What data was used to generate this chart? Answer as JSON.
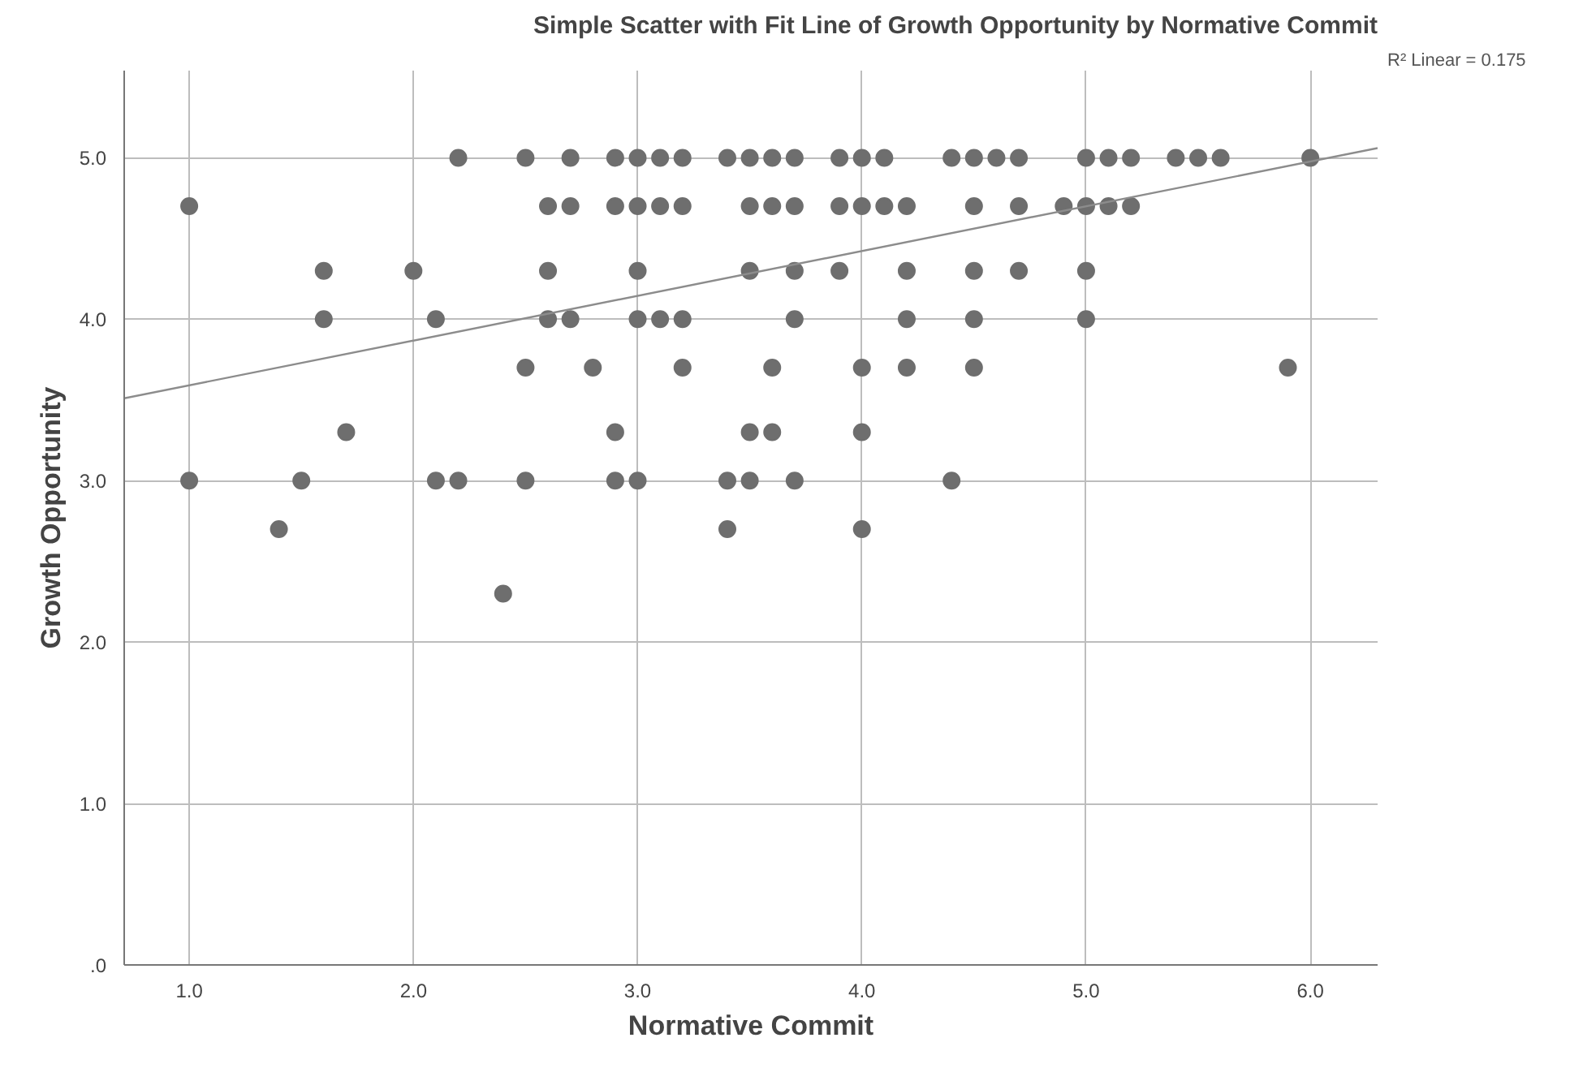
{
  "chart_data": {
    "type": "scatter",
    "title": "Simple Scatter with Fit Line of Growth Opportunity by Normative Commit",
    "xlabel": "Normative Commit",
    "ylabel": "Growth Opportunity",
    "annotations": [
      "R² Linear = 0.175"
    ],
    "series": [
      {
        "color": "#6e6e6e",
        "marker": "circle",
        "x": [
          2.2,
          2.5,
          2.7,
          2.9,
          3.0,
          3.1,
          3.2,
          3.4,
          3.5,
          3.6,
          3.7,
          3.9,
          4.0,
          4.1,
          4.4,
          4.5,
          4.6,
          4.7,
          5.0,
          5.1,
          5.2,
          5.4,
          5.5,
          5.6,
          6.0,
          1.0,
          2.6,
          2.7,
          2.9,
          3.0,
          3.1,
          3.2,
          3.5,
          3.6,
          3.7,
          3.9,
          4.0,
          4.1,
          4.2,
          4.5,
          4.7,
          4.9,
          5.0,
          5.1,
          5.2,
          1.6,
          2.0,
          2.6,
          3.0,
          3.5,
          3.7,
          3.9,
          4.2,
          4.5,
          4.7,
          5.0,
          1.6,
          2.1,
          2.6,
          2.7,
          3.0,
          3.1,
          3.2,
          3.7,
          4.2,
          4.5,
          5.0,
          2.5,
          2.8,
          3.2,
          3.6,
          4.0,
          4.2,
          4.5,
          5.9,
          1.7,
          2.9,
          3.5,
          3.6,
          4.0,
          1.0,
          1.5,
          2.1,
          2.2,
          2.5,
          2.9,
          3.0,
          3.4,
          3.5,
          3.7,
          4.4,
          1.4,
          3.4,
          4.0,
          2.4
        ],
        "values": [
          5.0,
          5.0,
          5.0,
          5.0,
          5.0,
          5.0,
          5.0,
          5.0,
          5.0,
          5.0,
          5.0,
          5.0,
          5.0,
          5.0,
          5.0,
          5.0,
          5.0,
          5.0,
          5.0,
          5.0,
          5.0,
          5.0,
          5.0,
          5.0,
          5.0,
          4.7,
          4.7,
          4.7,
          4.7,
          4.7,
          4.7,
          4.7,
          4.7,
          4.7,
          4.7,
          4.7,
          4.7,
          4.7,
          4.7,
          4.7,
          4.7,
          4.7,
          4.7,
          4.7,
          4.7,
          4.3,
          4.3,
          4.3,
          4.3,
          4.3,
          4.3,
          4.3,
          4.3,
          4.3,
          4.3,
          4.3,
          4.0,
          4.0,
          4.0,
          4.0,
          4.0,
          4.0,
          4.0,
          4.0,
          4.0,
          4.0,
          4.0,
          3.7,
          3.7,
          3.7,
          3.7,
          3.7,
          3.7,
          3.7,
          3.7,
          3.3,
          3.3,
          3.3,
          3.3,
          3.3,
          3.0,
          3.0,
          3.0,
          3.0,
          3.0,
          3.0,
          3.0,
          3.0,
          3.0,
          3.0,
          3.0,
          2.7,
          2.7,
          2.7,
          2.3
        ]
      },
      {
        "type": "line",
        "color": "#8c8c8c",
        "x": [
          0.71,
          6.3
        ],
        "values": [
          3.51,
          5.06
        ]
      }
    ],
    "grid": true,
    "xlim": [
      0.71,
      6.3
    ],
    "xticks": [
      {
        "value": 1,
        "label": "1.0"
      },
      {
        "value": 2,
        "label": "2.0"
      },
      {
        "value": 3,
        "label": "3.0"
      },
      {
        "value": 4,
        "label": "4.0"
      },
      {
        "value": 5,
        "label": "5.0"
      },
      {
        "value": 6,
        "label": "6.0"
      }
    ],
    "ylim": [
      0,
      5.54
    ],
    "yticks": [
      {
        "value": 0,
        "label": ".0"
      },
      {
        "value": 1,
        "label": "1.0"
      },
      {
        "value": 2,
        "label": "2.0"
      },
      {
        "value": 3,
        "label": "3.0"
      },
      {
        "value": 4,
        "label": "4.0"
      },
      {
        "value": 5,
        "label": "5.0"
      }
    ]
  }
}
